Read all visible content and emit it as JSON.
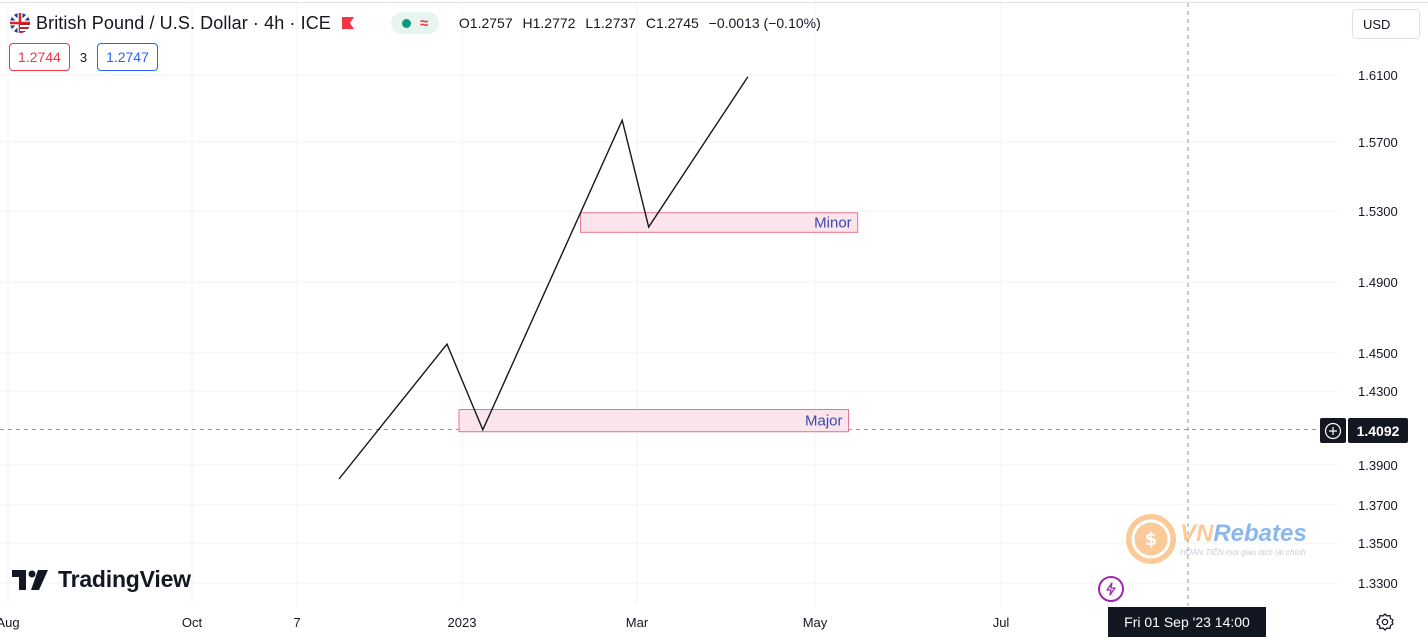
{
  "header": {
    "symbol_title": "British Pound / U.S. Dollar · 4h · ICE",
    "ohlc": {
      "open": "O1.2757",
      "high": "H1.2772",
      "low": "L1.2737",
      "close": "C1.2745",
      "change": "−0.0013 (−0.10%)"
    },
    "icons": [
      "uk-us-flag-icon",
      "red-flag-icon",
      "market-open-dot-icon",
      "wave-icon"
    ]
  },
  "quotes": {
    "sell": "1.2744",
    "spread": "3",
    "buy": "1.2747"
  },
  "currency_button": "USD",
  "logo_text": "TradingView",
  "watermark": {
    "brand_vn": "VN",
    "brand_rest": "Rebates",
    "tagline": "mọi giao dịch tài chính",
    "tag": "HOÀN TIỀN"
  },
  "crosshair": {
    "price_label": "1.4092",
    "date_label": "Fri 01 Sep '23   14:00"
  },
  "colors": {
    "zone_fill": "#fce4ec",
    "zone_border": "#e57389",
    "zone_text": "#3949ab",
    "line": "#131722",
    "grid": "#f0f3fa"
  },
  "chart_data": {
    "type": "line",
    "x_axis_labels": [
      "Aug",
      "Oct",
      "7",
      "2023",
      "Mar",
      "May",
      "Jul"
    ],
    "y_axis_labels": [
      "1.6100",
      "1.5700",
      "1.5300",
      "1.4900",
      "1.4500",
      "1.4300",
      "1.3900",
      "1.3700",
      "1.3500",
      "1.3300"
    ],
    "series": [
      {
        "x": [
          "2022-11-21",
          "2022-12-27",
          "2023-01-08",
          "2023-02-24",
          "2023-03-05",
          "2023-04-08"
        ],
        "y": [
          1.383,
          1.455,
          1.409,
          1.583,
          1.521,
          1.609
        ]
      }
    ],
    "zones": [
      {
        "label": "Minor",
        "x_start": "2023-02-10",
        "x_end": "2023-05-15",
        "y_low": 1.518,
        "y_high": 1.529
      },
      {
        "label": "Major",
        "x_start": "2022-12-31",
        "x_end": "2023-05-12",
        "y_low": 1.408,
        "y_high": 1.42
      }
    ]
  }
}
